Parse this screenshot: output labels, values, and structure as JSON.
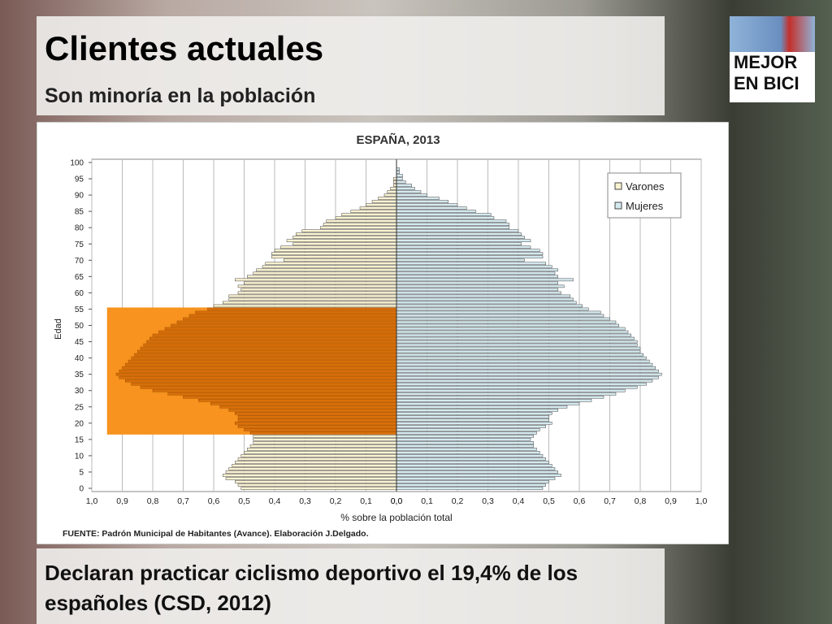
{
  "slide": {
    "title": "Clientes actuales",
    "subtitle": "Son minoría en la población",
    "footer": "Declaran practicar ciclismo deportivo el 19,4% de los españoles (CSD, 2012)",
    "logo": [
      "MEJOR",
      "EN BICI"
    ]
  },
  "chart_data": {
    "type": "pyramid",
    "title": "ESPAÑA, 2013",
    "y_label": "Edad",
    "x_label": "% sobre la población total",
    "source": "FUENTE: Padrón Municipal de Habitantes (Avance). Elaboración J.Delgado.",
    "categories": [
      0,
      1,
      2,
      3,
      4,
      5,
      6,
      7,
      8,
      9,
      10,
      11,
      12,
      13,
      14,
      15,
      16,
      17,
      18,
      19,
      20,
      21,
      22,
      23,
      24,
      25,
      26,
      27,
      28,
      29,
      30,
      31,
      32,
      33,
      34,
      35,
      36,
      37,
      38,
      39,
      40,
      41,
      42,
      43,
      44,
      45,
      46,
      47,
      48,
      49,
      50,
      51,
      52,
      53,
      54,
      55,
      56,
      57,
      58,
      59,
      60,
      61,
      62,
      63,
      64,
      65,
      66,
      67,
      68,
      69,
      70,
      71,
      72,
      73,
      74,
      75,
      76,
      77,
      78,
      79,
      80,
      81,
      82,
      83,
      84,
      85,
      86,
      87,
      88,
      89,
      90,
      91,
      92,
      93,
      94,
      95,
      96,
      97,
      98,
      99,
      100
    ],
    "series": [
      {
        "name": "Varones",
        "side": "left",
        "color": "#fbf3d0",
        "values": [
          0.51,
          0.52,
          0.53,
          0.56,
          0.57,
          0.56,
          0.55,
          0.54,
          0.53,
          0.52,
          0.51,
          0.5,
          0.49,
          0.48,
          0.47,
          0.47,
          0.47,
          0.48,
          0.5,
          0.52,
          0.53,
          0.52,
          0.52,
          0.53,
          0.55,
          0.58,
          0.61,
          0.65,
          0.7,
          0.75,
          0.8,
          0.84,
          0.87,
          0.89,
          0.91,
          0.92,
          0.91,
          0.9,
          0.89,
          0.88,
          0.87,
          0.86,
          0.85,
          0.84,
          0.83,
          0.82,
          0.81,
          0.8,
          0.78,
          0.76,
          0.74,
          0.72,
          0.7,
          0.68,
          0.66,
          0.62,
          0.6,
          0.57,
          0.55,
          0.55,
          0.52,
          0.51,
          0.52,
          0.5,
          0.53,
          0.49,
          0.47,
          0.46,
          0.44,
          0.43,
          0.37,
          0.41,
          0.41,
          0.4,
          0.38,
          0.34,
          0.36,
          0.34,
          0.33,
          0.31,
          0.25,
          0.24,
          0.23,
          0.2,
          0.18,
          0.15,
          0.12,
          0.1,
          0.08,
          0.06,
          0.04,
          0.03,
          0.02,
          0.01,
          0.01,
          0.01,
          0,
          0,
          0,
          0,
          0
        ]
      },
      {
        "name": "Mujeres",
        "side": "right",
        "color": "#d5eaf0",
        "values": [
          0.48,
          0.49,
          0.5,
          0.52,
          0.54,
          0.53,
          0.52,
          0.51,
          0.5,
          0.49,
          0.48,
          0.47,
          0.46,
          0.45,
          0.45,
          0.44,
          0.45,
          0.46,
          0.47,
          0.49,
          0.51,
          0.5,
          0.5,
          0.51,
          0.53,
          0.56,
          0.6,
          0.64,
          0.68,
          0.72,
          0.75,
          0.79,
          0.82,
          0.84,
          0.86,
          0.87,
          0.86,
          0.85,
          0.84,
          0.83,
          0.82,
          0.81,
          0.8,
          0.8,
          0.79,
          0.79,
          0.78,
          0.77,
          0.76,
          0.75,
          0.73,
          0.72,
          0.7,
          0.68,
          0.67,
          0.63,
          0.61,
          0.59,
          0.58,
          0.57,
          0.54,
          0.53,
          0.55,
          0.53,
          0.58,
          0.53,
          0.52,
          0.53,
          0.51,
          0.49,
          0.42,
          0.48,
          0.48,
          0.47,
          0.44,
          0.41,
          0.44,
          0.42,
          0.41,
          0.4,
          0.37,
          0.37,
          0.36,
          0.32,
          0.31,
          0.26,
          0.23,
          0.2,
          0.17,
          0.14,
          0.1,
          0.08,
          0.06,
          0.05,
          0.03,
          0.02,
          0.02,
          0.01,
          0.01,
          0,
          0
        ]
      }
    ],
    "highlight": {
      "series": 0,
      "from": 17,
      "to": 55,
      "extent": 0.95,
      "color": "#f7931e",
      "bar_color": "#d9700a"
    },
    "xlim": [
      0,
      1.0
    ],
    "xticks": [
      {
        "value": 0,
        "label": "0,0"
      },
      {
        "value": 0.1,
        "label": "0,1"
      },
      {
        "value": 0.2,
        "label": "0,2"
      },
      {
        "value": 0.3,
        "label": "0,3"
      },
      {
        "value": 0.4,
        "label": "0,4"
      },
      {
        "value": 0.5,
        "label": "0,5"
      },
      {
        "value": 0.6,
        "label": "0,6"
      },
      {
        "value": 0.7,
        "label": "0,7"
      },
      {
        "value": 0.8,
        "label": "0,8"
      },
      {
        "value": 0.9,
        "label": "0,9"
      },
      {
        "value": 1.0,
        "label": "1,0"
      }
    ],
    "ylim": [
      0,
      100
    ],
    "yticks": [
      0,
      5,
      10,
      15,
      20,
      25,
      30,
      35,
      40,
      45,
      50,
      55,
      60,
      65,
      70,
      75,
      80,
      85,
      90,
      95,
      100
    ],
    "grid": true,
    "legend": "top-right"
  }
}
